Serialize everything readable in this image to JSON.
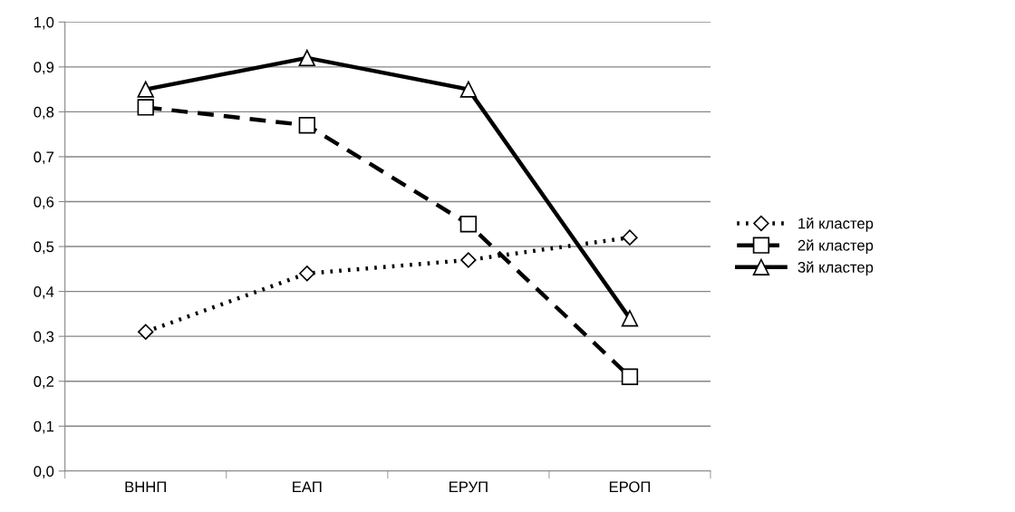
{
  "chart_data": {
    "type": "line",
    "categories": [
      "ВННП",
      "ЕАП",
      "ЕРУП",
      "ЕРОП"
    ],
    "series": [
      {
        "name": "1й кластер",
        "color": "#000000",
        "values": [
          0.31,
          0.44,
          0.47,
          0.52
        ],
        "marker": "diamond",
        "line_style": "dotted"
      },
      {
        "name": "2й кластер",
        "color": "#000000",
        "values": [
          0.81,
          0.77,
          0.55,
          0.21
        ],
        "marker": "square",
        "line_style": "dashed"
      },
      {
        "name": "3й кластер",
        "color": "#000000",
        "values": [
          0.85,
          0.92,
          0.85,
          0.34
        ],
        "marker": "triangle",
        "line_style": "solid"
      }
    ],
    "ylim": [
      0,
      1
    ],
    "yticks": [
      {
        "value": 0,
        "label": "0,0"
      },
      {
        "value": 0.1,
        "label": "0,1"
      },
      {
        "value": 0.2,
        "label": "0,2"
      },
      {
        "value": 0.3,
        "label": "0,3"
      },
      {
        "value": 0.4,
        "label": "0,4"
      },
      {
        "value": 0.5,
        "label": "0,5"
      },
      {
        "value": 0.6,
        "label": "0,6"
      },
      {
        "value": 0.7,
        "label": "0,7"
      },
      {
        "value": 0.8,
        "label": "0,8"
      },
      {
        "value": 0.9,
        "label": "0,9"
      },
      {
        "value": 1.0,
        "label": "1,0"
      }
    ],
    "grid": "y",
    "legend": "right"
  }
}
